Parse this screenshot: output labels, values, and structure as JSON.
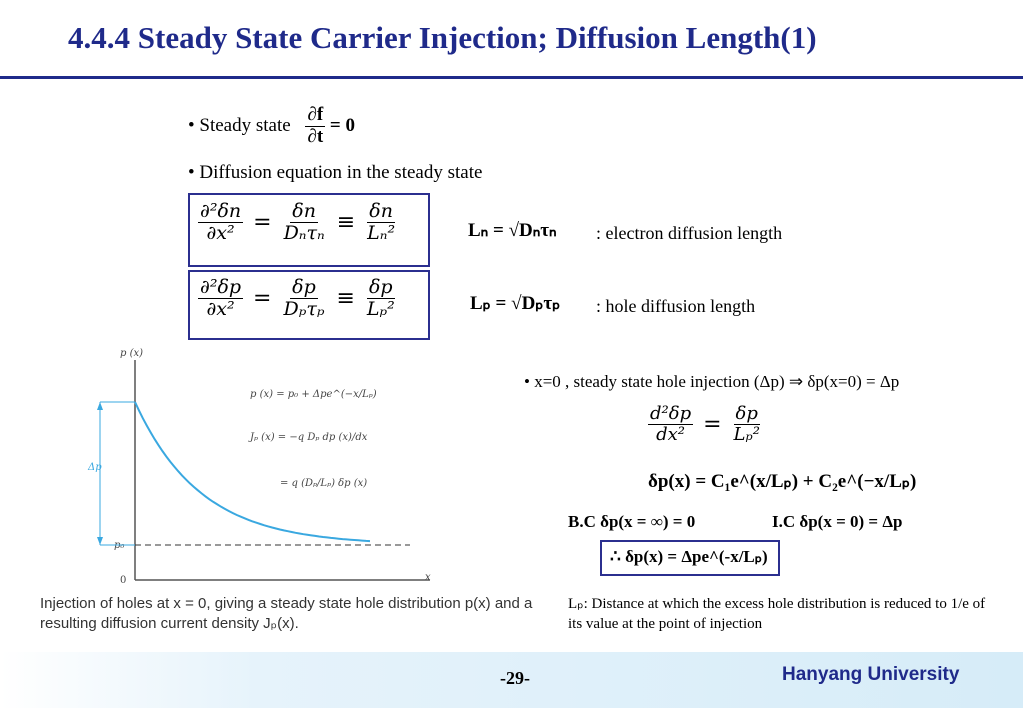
{
  "title": "4.4.4 Steady State Carrier Injection; Diffusion Length(1)",
  "bullets": {
    "steady_state": "• Steady state",
    "steady_num": "∂f",
    "steady_den": "∂t",
    "steady_rhs": "= 0",
    "diffusion_eq": "• Diffusion equation in the steady state",
    "xzero": "•  x=0 , steady state hole injection (Δp) ⇒ δp(x=0) = Δp"
  },
  "eq_n": {
    "lhs_num": "∂²δn",
    "lhs_den": "∂x²",
    "mid_num": "δn",
    "mid_den": "Dₙτₙ",
    "rhs_num": "δn",
    "rhs_den": "Lₙ²",
    "ln_def": "Lₙ = √Dₙτₙ",
    "ln_text": ": electron diffusion length"
  },
  "eq_p": {
    "lhs_num": "∂²δp",
    "lhs_den": "∂x²",
    "mid_num": "δp",
    "mid_den": "Dₚτₚ",
    "rhs_num": "δp",
    "rhs_den": "Lₚ²",
    "lp_def": "Lₚ = √Dₚτₚ",
    "lp_text": ": hole diffusion length"
  },
  "ode": {
    "num": "d²δp",
    "den": "dx²",
    "eq": "=",
    "rnum": "δp",
    "rden": "Lₚ²"
  },
  "general_solution": "δp(x) = C₁e^(x/Lₚ) + C₂e^(−x/Lₚ)",
  "bc": "B.C    δp(x = ∞) = 0",
  "ic": "I.C     δp(x = 0) = Δp",
  "result": "∴  δp(x) = Δpe^(-x/Lₚ)",
  "lp_note_label": "Lₚ",
  "lp_note": ": Distance at which the excess hole distribution is reduced to 1/e of its value at the point of injection",
  "figure": {
    "y_axis_label": "p (x)",
    "x_axis_label": "x",
    "origin_label": "0",
    "p0_label": "p₀",
    "dp_label": "Δp",
    "eq1": "p (x)  =  p₀  +  Δpe^(−x/Lₚ)",
    "eq2": "Jₚ (x)  =  −q Dₚ dp (x)/dx",
    "eq3": "=  q (Dₚ/Lₚ) δp (x)",
    "curve_color": "#3aa8e0",
    "dashed_color": "#333333"
  },
  "caption": "Injection of holes at x = 0, giving a steady state hole distribution p(x) and a resulting diffusion current density Jₚ(x).",
  "page_number": "-29-",
  "university": "Hanyang University"
}
